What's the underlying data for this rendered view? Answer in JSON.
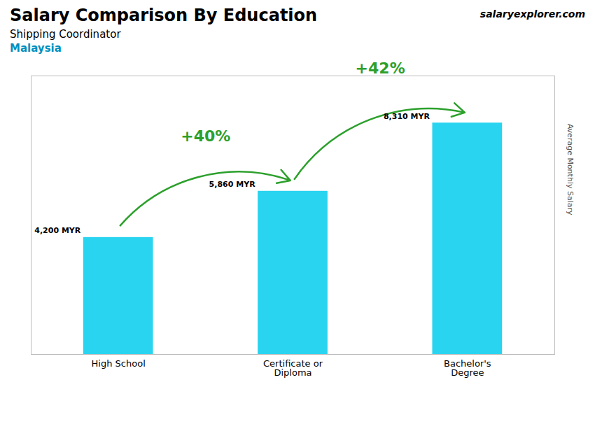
{
  "chart_data": {
    "type": "bar",
    "title": "Salary Comparison By Education",
    "subtitle": "Shipping Coordinator",
    "annotations": [
      {
        "text": "Malaysia"
      },
      {
        "text": "salaryexplorer.com"
      },
      {
        "text": "+40%",
        "from": "High School",
        "to": "Certificate or\nDiploma"
      },
      {
        "text": "+42%",
        "from": "Certificate or\nDiploma",
        "to": "Bachelor's\nDegree"
      }
    ],
    "ylabel": "Average Monthly Salary",
    "categories": [
      "High School",
      "Certificate or\nDiploma",
      "Bachelor's\nDegree"
    ],
    "values": [
      4200,
      5860,
      8310
    ],
    "value_labels": [
      "4,200 MYR",
      "5,860 MYR",
      "8,310 MYR"
    ],
    "data_labels": true,
    "color": "#29d4f0",
    "ylim": [
      0,
      10000
    ],
    "tick_labels": "x",
    "grid": false
  }
}
